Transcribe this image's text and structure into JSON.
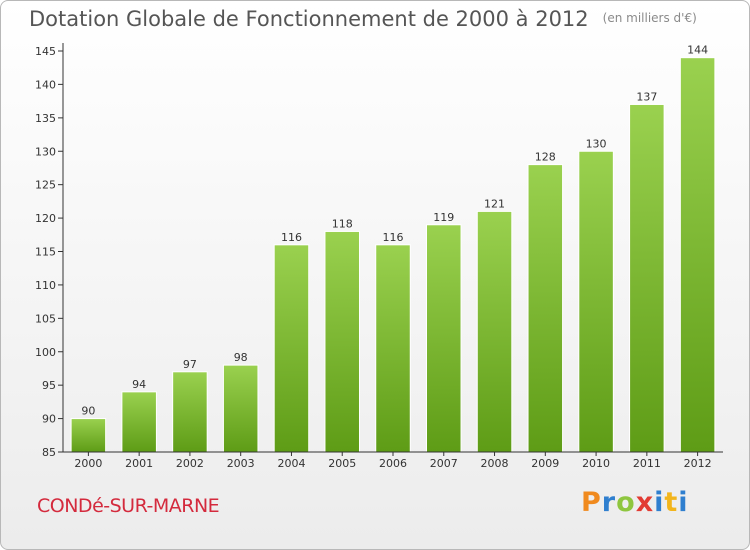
{
  "header": {
    "title": "Dotation Globale de Fonctionnement de 2000 à 2012",
    "unit": "(en milliers d'€)"
  },
  "footer": {
    "commune": "CONDé-SUR-MARNE",
    "logo": "Proxiti"
  },
  "chart_data": {
    "type": "bar",
    "title": "Dotation Globale de Fonctionnement de 2000 à 2012",
    "subtitle": "(en milliers d'€)",
    "categories": [
      "2000",
      "2001",
      "2002",
      "2003",
      "2004",
      "2005",
      "2006",
      "2007",
      "2008",
      "2009",
      "2010",
      "2011",
      "2012"
    ],
    "values": [
      90,
      94,
      97,
      98,
      116,
      118,
      116,
      119,
      121,
      128,
      130,
      137,
      144
    ],
    "data_labels": [
      "90",
      "94",
      "97",
      "98",
      "116",
      "118",
      "116",
      "119",
      "121",
      "128",
      "130",
      "137",
      "144"
    ],
    "ylim": [
      85,
      145
    ],
    "yticks": [
      "85",
      "90",
      "95",
      "100",
      "105",
      "110",
      "115",
      "120",
      "125",
      "130",
      "135",
      "140",
      "145"
    ],
    "grid": false,
    "colors": {
      "bar_light": "#9ad14f",
      "bar_dark": "#5e9c16",
      "axis": "#333333"
    }
  }
}
